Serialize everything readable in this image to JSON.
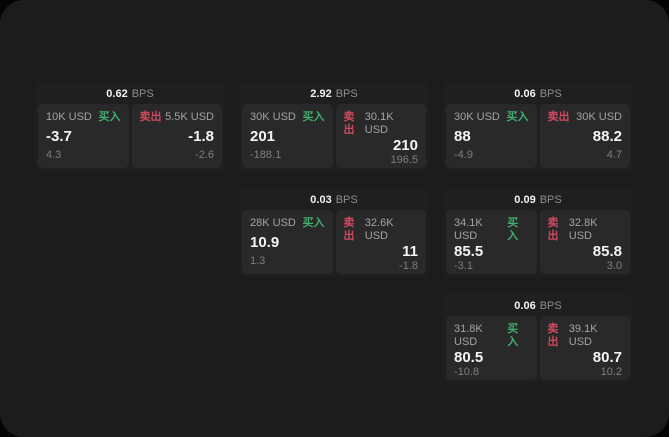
{
  "labels": {
    "bps_unit": "BPS",
    "buy": "买入",
    "sell": "卖出"
  },
  "colors": {
    "page_bg": "#1c1c1c",
    "card_bg": "#1f1f1f",
    "panel_bg": "#292929",
    "buy_green": "#3fae6e",
    "sell_red": "#cf4a5e",
    "dim_text": "#8d8d8d",
    "label_text": "#a3a3a3",
    "sub_text": "#7f7f7f"
  },
  "cards": [
    {
      "grid_column": 1,
      "grid_row": 1,
      "bps": "0.62",
      "buy": {
        "amount": "10K USD",
        "label": "买入",
        "value": "-3.7",
        "sub": "4.3"
      },
      "sell": {
        "label": "卖出",
        "amount": "5.5K USD",
        "value": "-1.8",
        "sub": "-2.6"
      }
    },
    {
      "grid_column": 2,
      "grid_row": 1,
      "bps": "2.92",
      "buy": {
        "amount": "30K USD",
        "label": "买入",
        "value": "201",
        "sub": "-188.1"
      },
      "sell": {
        "label": "卖出",
        "amount": "30.1K USD",
        "value": "210",
        "sub": "196.5"
      }
    },
    {
      "grid_column": 3,
      "grid_row": 1,
      "bps": "0.06",
      "buy": {
        "amount": "30K USD",
        "label": "买入",
        "value": "88",
        "sub": "-4.9"
      },
      "sell": {
        "label": "卖出",
        "amount": "30K USD",
        "value": "88.2",
        "sub": "4.7"
      }
    },
    {
      "grid_column": 2,
      "grid_row": 2,
      "bps": "0.03",
      "buy": {
        "amount": "28K USD",
        "label": "买入",
        "value": "10.9",
        "sub": "1.3"
      },
      "sell": {
        "label": "卖出",
        "amount": "32.6K USD",
        "value": "11",
        "sub": "-1.8"
      }
    },
    {
      "grid_column": 3,
      "grid_row": 2,
      "bps": "0.09",
      "buy": {
        "amount": "34.1K USD",
        "label": "买入",
        "value": "85.5",
        "sub": "-3.1"
      },
      "sell": {
        "label": "卖出",
        "amount": "32.8K USD",
        "value": "85.8",
        "sub": "3.0"
      }
    },
    {
      "grid_column": 3,
      "grid_row": 3,
      "bps": "0.06",
      "buy": {
        "amount": "31.8K USD",
        "label": "买入",
        "value": "80.5",
        "sub": "-10.8"
      },
      "sell": {
        "label": "卖出",
        "amount": "39.1K USD",
        "value": "80.7",
        "sub": "10.2"
      }
    }
  ]
}
